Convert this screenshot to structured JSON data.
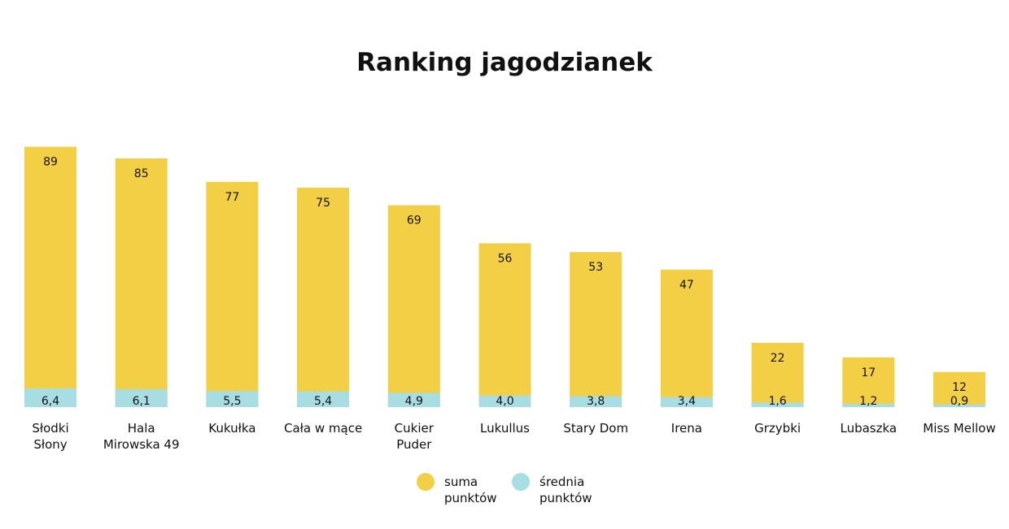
{
  "chart_data": {
    "type": "bar",
    "title": "Ranking jagodzianek",
    "xlabel": "",
    "ylabel": "",
    "ylim": [
      0,
      89
    ],
    "grid": false,
    "legend_position": "bottom-center",
    "categories": [
      [
        "Słodki",
        "Słony"
      ],
      [
        "Hala",
        "Mirowska 49"
      ],
      [
        "Kukułka"
      ],
      [
        "Cała w mące"
      ],
      [
        "Cukier",
        "Puder"
      ],
      [
        "Lukullus"
      ],
      [
        "Stary Dom"
      ],
      [
        "Irena"
      ],
      [
        "Grzybki"
      ],
      [
        "Lubaszka"
      ],
      [
        "Miss Mellow"
      ]
    ],
    "series": [
      {
        "name": "suma punktów",
        "legend": [
          "suma",
          "punktów"
        ],
        "color": "#F3CF45",
        "values": [
          89,
          85,
          77,
          75,
          69,
          56,
          53,
          47,
          22,
          17,
          12
        ],
        "labels": [
          "89",
          "85",
          "77",
          "75",
          "69",
          "56",
          "53",
          "47",
          "22",
          "17",
          "12"
        ]
      },
      {
        "name": "średnia punktów",
        "legend": [
          "średnia",
          "punktów"
        ],
        "color": "#A8DDE3",
        "values": [
          6.4,
          6.1,
          5.5,
          5.4,
          4.9,
          4.0,
          3.8,
          3.4,
          1.6,
          1.2,
          0.9
        ],
        "labels": [
          "6,4",
          "6,1",
          "5,5",
          "5,4",
          "4,9",
          "4,0",
          "3,8",
          "3,4",
          "1,6",
          "1,2",
          "0,9"
        ]
      }
    ]
  }
}
